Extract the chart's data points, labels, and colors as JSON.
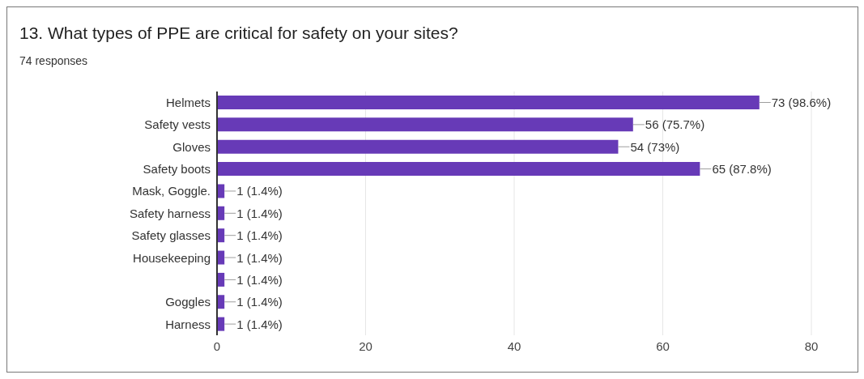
{
  "chart_data": {
    "type": "bar",
    "orientation": "horizontal",
    "title": "13. What types of PPE are critical for safety on your sites?",
    "subtitle": "74 responses",
    "categories": [
      "Helmets",
      "Safety vests",
      "Gloves",
      "Safety boots",
      "Mask, Goggle.",
      "Safety harness",
      "Safety glasses",
      "Housekeeping",
      null,
      "Goggles",
      "Harness"
    ],
    "values": [
      73,
      56,
      54,
      65,
      1,
      1,
      1,
      1,
      1,
      1,
      1
    ],
    "value_labels": [
      "73 (98.6%)",
      "56 (75.7%)",
      "54 (73%)",
      "65 (87.8%)",
      "1 (1.4%)",
      "1 (1.4%)",
      "1 (1.4%)",
      "1 (1.4%)",
      "1 (1.4%)",
      "1 (1.4%)",
      "1 (1.4%)"
    ],
    "color": "#673ab7",
    "xlim": [
      0,
      80
    ],
    "xticks": [
      0,
      20,
      40,
      60,
      80
    ],
    "grid": "x"
  }
}
